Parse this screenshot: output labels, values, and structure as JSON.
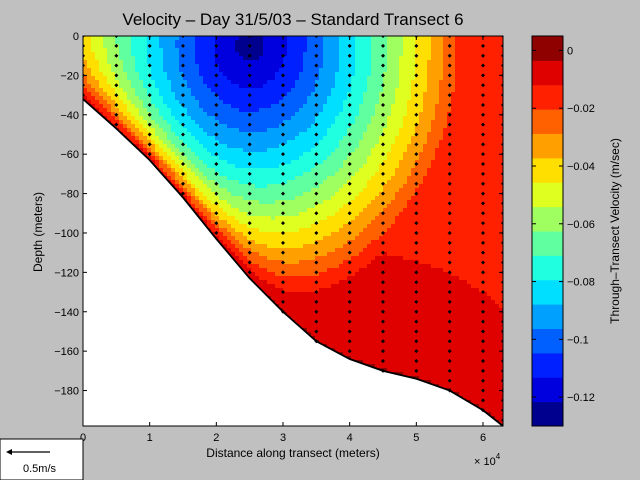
{
  "chart_data": {
    "type": "heatmap",
    "title": "Velocity – Day 31/5/03 – Standard Transect 6",
    "xlabel": "Distance along transect (meters)",
    "ylabel": "Depth (meters)",
    "x_exponent_label": "× 10",
    "x_exponent_power": "4",
    "xlim": [
      0,
      63000
    ],
    "ylim": [
      -198,
      0
    ],
    "x_ticks": [
      {
        "v": 0,
        "label": "0"
      },
      {
        "v": 10000,
        "label": "1"
      },
      {
        "v": 20000,
        "label": "2"
      },
      {
        "v": 30000,
        "label": "3"
      },
      {
        "v": 40000,
        "label": "4"
      },
      {
        "v": 50000,
        "label": "5"
      },
      {
        "v": 60000,
        "label": "6"
      }
    ],
    "y_ticks": [
      {
        "v": 0,
        "label": "0"
      },
      {
        "v": -20,
        "label": "−20"
      },
      {
        "v": -40,
        "label": "−40"
      },
      {
        "v": -60,
        "label": "−60"
      },
      {
        "v": -80,
        "label": "−80"
      },
      {
        "v": -100,
        "label": "−100"
      },
      {
        "v": -120,
        "label": "−120"
      },
      {
        "v": -140,
        "label": "−140"
      },
      {
        "v": -160,
        "label": "−160"
      },
      {
        "v": -180,
        "label": "−180"
      }
    ],
    "bottom_profile": [
      [
        0,
        -32
      ],
      [
        5000,
        -47
      ],
      [
        10000,
        -63
      ],
      [
        15000,
        -82
      ],
      [
        20000,
        -103
      ],
      [
        25000,
        -123
      ],
      [
        30000,
        -140
      ],
      [
        35000,
        -155
      ],
      [
        40000,
        -164
      ],
      [
        45000,
        -170
      ],
      [
        50000,
        -174
      ],
      [
        55000,
        -180
      ],
      [
        60000,
        -190
      ],
      [
        63000,
        -198
      ]
    ],
    "stations_x": [
      0,
      5000,
      10000,
      15000,
      20000,
      25000,
      30000,
      35000,
      40000,
      45000,
      50000,
      55000,
      60000,
      63000
    ],
    "sample_depth_spacing": 5,
    "velocity_core": {
      "x": 25000,
      "depth": -5,
      "value": -0.125
    },
    "colorbar": {
      "label": "Through–Transect Velocity (m/sec)",
      "range": [
        -0.13,
        0.005
      ],
      "ticks": [
        {
          "v": 0,
          "label": "0"
        },
        {
          "v": -0.02,
          "label": "−0.02"
        },
        {
          "v": -0.04,
          "label": "−0.04"
        },
        {
          "v": -0.06,
          "label": "−0.06"
        },
        {
          "v": -0.08,
          "label": "−0.08"
        },
        {
          "v": -0.1,
          "label": "−0.1"
        },
        {
          "v": -0.12,
          "label": "−0.12"
        }
      ],
      "colors": [
        "#00008f",
        "#0000df",
        "#0020ff",
        "#0060ff",
        "#00a0ff",
        "#00dfff",
        "#20ffdf",
        "#60ffa0",
        "#a0ff60",
        "#dfff20",
        "#ffdf00",
        "#ffa000",
        "#ff6000",
        "#ff2000",
        "#df0000",
        "#8f0000"
      ]
    },
    "legend": {
      "type": "velocity-scale-arrow",
      "label": "0.5m/s"
    }
  }
}
